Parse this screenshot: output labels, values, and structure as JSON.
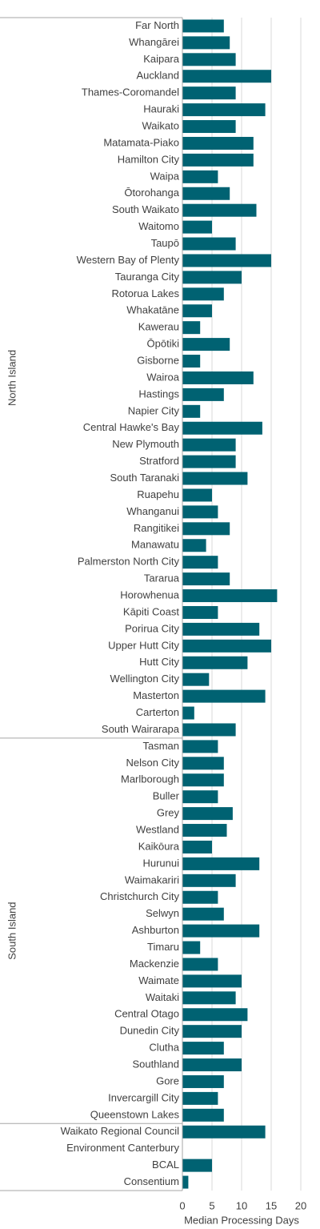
{
  "chart_data": {
    "type": "bar",
    "orientation": "horizontal",
    "color": "#006272",
    "grid": true,
    "xlabel": "Median Processing Days",
    "xlim": [
      0,
      20
    ],
    "xticks": [
      0,
      5,
      10,
      15,
      20
    ],
    "groups": [
      {
        "label": "North Island",
        "categories": [
          "Far North",
          "Whangārei",
          "Kaipara",
          "Auckland",
          "Thames-Coromandel",
          "Hauraki",
          "Waikato",
          "Matamata-Piako",
          "Hamilton City",
          "Waipa",
          "Ōtorohanga",
          "South Waikato",
          "Waitomo",
          "Taupō",
          "Western Bay of Plenty",
          "Tauranga City",
          "Rotorua Lakes",
          "Whakatāne",
          "Kawerau",
          "Ōpōtiki",
          "Gisborne",
          "Wairoa",
          "Hastings",
          "Napier City",
          "Central Hawke's Bay",
          "New Plymouth",
          "Stratford",
          "South Taranaki",
          "Ruapehu",
          "Whanganui",
          "Rangitikei",
          "Manawatu",
          "Palmerston North City",
          "Tararua",
          "Horowhenua",
          "Kāpiti Coast",
          "Porirua City",
          "Upper Hutt City",
          "Hutt City",
          "Wellington City",
          "Masterton",
          "Carterton",
          "South Wairarapa"
        ],
        "values": [
          7,
          8,
          9,
          15,
          9,
          14,
          9,
          12,
          12,
          6,
          8,
          12.5,
          5,
          9,
          15,
          10,
          7,
          5,
          3,
          8,
          3,
          12,
          7,
          3,
          13.5,
          9,
          9,
          11,
          5,
          6,
          8,
          4,
          6,
          8,
          16,
          6,
          13,
          15,
          11,
          4.5,
          14,
          2,
          9
        ]
      },
      {
        "label": "South Island",
        "categories": [
          "Tasman",
          "Nelson City",
          "Marlborough",
          "Buller",
          "Grey",
          "Westland",
          "Kaikōura",
          "Hurunui",
          "Waimakariri",
          "Christchurch City",
          "Selwyn",
          "Ashburton",
          "Timaru",
          "Mackenzie",
          "Waimate",
          "Waitaki",
          "Central Otago",
          "Dunedin City",
          "Clutha",
          "Southland",
          "Gore",
          "Invercargill City",
          "Queenstown Lakes"
        ],
        "values": [
          6,
          7,
          7,
          6,
          8.5,
          7.5,
          5,
          13,
          9,
          6,
          7,
          13,
          3,
          6,
          10,
          9,
          11,
          10,
          7,
          10,
          7,
          6,
          7
        ]
      },
      {
        "categories": [
          "Waikato Regional Council",
          "Environment Canterbury",
          "BCAL",
          "Consentium"
        ],
        "values": [
          14,
          null,
          5,
          1
        ]
      }
    ]
  }
}
